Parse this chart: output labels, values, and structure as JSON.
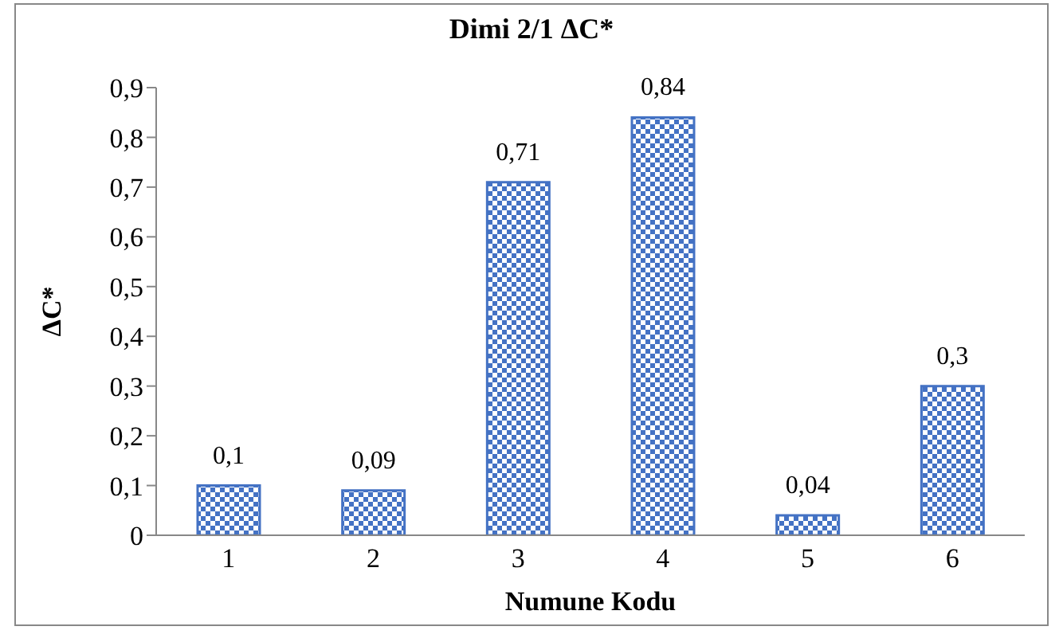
{
  "chart_data": {
    "type": "bar",
    "title": "Dimi 2/1 ΔC*",
    "xlabel": "Numune Kodu",
    "ylabel": "ΔC*",
    "categories": [
      "1",
      "2",
      "3",
      "4",
      "5",
      "6"
    ],
    "values": [
      0.1,
      0.09,
      0.71,
      0.84,
      0.04,
      0.3
    ],
    "value_labels": [
      "0,1",
      "0,09",
      "0,71",
      "0,84",
      "0,04",
      "0,3"
    ],
    "color": "#4472c4",
    "ylim": [
      0,
      0.9
    ],
    "yticks": [
      {
        "value": 0,
        "label": "0"
      },
      {
        "value": 0.1,
        "label": "0,1"
      },
      {
        "value": 0.2,
        "label": "0,2"
      },
      {
        "value": 0.3,
        "label": "0,3"
      },
      {
        "value": 0.4,
        "label": "0,4"
      },
      {
        "value": 0.5,
        "label": "0,5"
      },
      {
        "value": 0.6,
        "label": "0,6"
      },
      {
        "value": 0.7,
        "label": "0,7"
      },
      {
        "value": 0.8,
        "label": "0,8"
      },
      {
        "value": 0.9,
        "label": "0,9"
      }
    ],
    "grid": false,
    "legend": false
  }
}
